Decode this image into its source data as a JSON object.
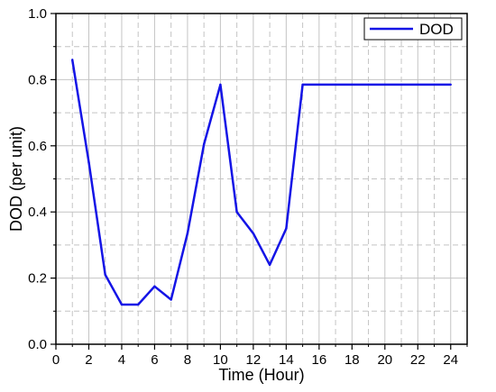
{
  "chart_data": {
    "type": "line",
    "title": "",
    "xlabel": "Time (Hour)",
    "ylabel": "DOD (per unit)",
    "xlim": [
      0,
      25
    ],
    "ylim": [
      0,
      1.0
    ],
    "xticks": [
      0,
      2,
      4,
      6,
      8,
      10,
      12,
      14,
      16,
      18,
      20,
      22,
      24
    ],
    "xtick_labels": [
      "0",
      "2",
      "4",
      "6",
      "8",
      "10",
      "12",
      "14",
      "16",
      "18",
      "20",
      "22",
      "24"
    ],
    "yticks": [
      0.0,
      0.2,
      0.4,
      0.6,
      0.8,
      1.0
    ],
    "ytick_labels": [
      "0.0",
      "0.2",
      "0.4",
      "0.6",
      "0.8",
      "1.0"
    ],
    "grid": {
      "major": "solid light gray",
      "minor": "dashed light gray"
    },
    "legend_position": "top-right",
    "series": [
      {
        "name": "DOD",
        "color": "#1414e6",
        "x": [
          1,
          2,
          3,
          4,
          5,
          6,
          7,
          8,
          9,
          10,
          11,
          12,
          13,
          14,
          15,
          16,
          17,
          18,
          19,
          20,
          21,
          22,
          23,
          24
        ],
        "y": [
          0.86,
          0.55,
          0.21,
          0.12,
          0.12,
          0.175,
          0.135,
          0.335,
          0.605,
          0.785,
          0.4,
          0.335,
          0.24,
          0.35,
          0.785,
          0.785,
          0.785,
          0.785,
          0.785,
          0.785,
          0.785,
          0.785,
          0.785,
          0.785
        ]
      }
    ]
  }
}
